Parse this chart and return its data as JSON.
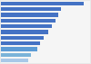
{
  "values": [
    100,
    73,
    69,
    66,
    62,
    57,
    52,
    47,
    44,
    36,
    33
  ],
  "bar_colors": [
    "#4472c4",
    "#4472c4",
    "#4472c4",
    "#4472c4",
    "#4472c4",
    "#4472c4",
    "#4472c4",
    "#4472c4",
    "#5b9bd5",
    "#7ab3d9",
    "#a8c8e8"
  ],
  "background_color": "#e8e8e8",
  "plot_bg_color": "#f5f5f5",
  "grid_color": "#d0d0d0",
  "xlim": [
    0,
    108
  ],
  "figsize": [
    1.0,
    0.71
  ],
  "dpi": 100
}
